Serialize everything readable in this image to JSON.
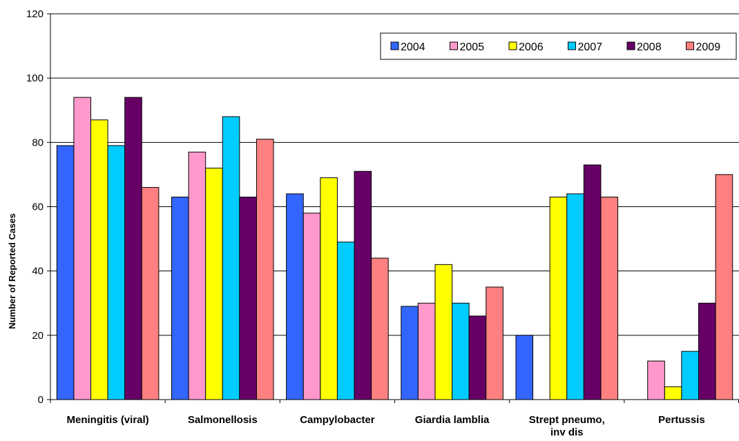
{
  "chart_data": {
    "type": "bar",
    "title": "",
    "xlabel": "",
    "ylabel": "Number of Reported Cases",
    "ylim": [
      0,
      120
    ],
    "yticks": [
      "0",
      "20",
      "40",
      "60",
      "80",
      "100",
      "120"
    ],
    "grid": true,
    "legend_position": "top-right",
    "categories": [
      "Meningitis (viral)",
      "Salmonellosis",
      "Campylobacter",
      "Giardia lamblia",
      "Strept pneumo, inv dis",
      "Pertussis"
    ],
    "series": [
      {
        "name": "2004",
        "color": "#3366ff",
        "values": [
          79,
          63,
          64,
          29,
          20,
          0
        ]
      },
      {
        "name": "2005",
        "color": "#ff99cc",
        "values": [
          94,
          77,
          58,
          30,
          0,
          12
        ]
      },
      {
        "name": "2006",
        "color": "#ffff00",
        "values": [
          87,
          72,
          69,
          42,
          63,
          4
        ]
      },
      {
        "name": "2007",
        "color": "#00ccff",
        "values": [
          79,
          88,
          49,
          30,
          64,
          15
        ]
      },
      {
        "name": "2008",
        "color": "#660066",
        "values": [
          94,
          63,
          71,
          26,
          73,
          30
        ]
      },
      {
        "name": "2009",
        "color": "#ff8080",
        "values": [
          66,
          81,
          44,
          35,
          63,
          70
        ]
      }
    ]
  }
}
